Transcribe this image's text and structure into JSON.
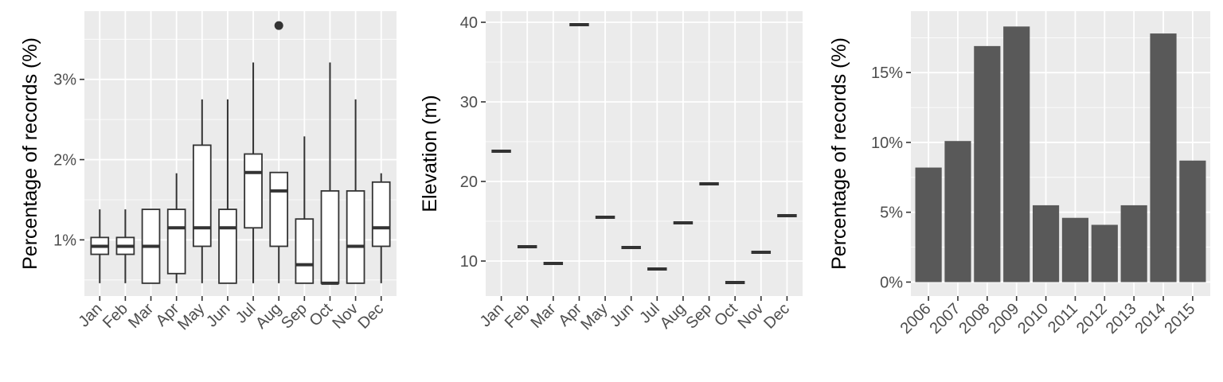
{
  "colors": {
    "panel_background": "#ebebeb",
    "grid_major": "#ffffff",
    "box_fill": "#ffffff",
    "box_stroke": "#333333",
    "bar_fill": "#595959",
    "tick_text": "#4d4d4d",
    "title_text": "#000000"
  },
  "chart_data": [
    {
      "type": "box",
      "title": "",
      "xlabel": "",
      "ylabel": "Percentage of records (%)",
      "ylim": [
        0.3,
        3.85
      ],
      "y_ticks": [
        1,
        2,
        3
      ],
      "y_tick_labels": [
        "1%",
        "2%",
        "3%"
      ],
      "grid": true,
      "categories": [
        "Jan",
        "Feb",
        "Mar",
        "Apr",
        "May",
        "Jun",
        "Jul",
        "Aug",
        "Sep",
        "Oct",
        "Nov",
        "Dec"
      ],
      "boxes": [
        {
          "min": 0.46,
          "q1": 0.82,
          "median": 0.92,
          "q3": 1.03,
          "max": 1.38
        },
        {
          "min": 0.46,
          "q1": 0.82,
          "median": 0.92,
          "q3": 1.03,
          "max": 1.38
        },
        {
          "min": 0.46,
          "q1": 0.46,
          "median": 0.92,
          "q3": 1.38,
          "max": 1.38
        },
        {
          "min": 0.46,
          "q1": 0.58,
          "median": 1.15,
          "q3": 1.38,
          "max": 1.83
        },
        {
          "min": 0.46,
          "q1": 0.92,
          "median": 1.15,
          "q3": 2.18,
          "max": 2.75
        },
        {
          "min": 0.46,
          "q1": 0.46,
          "median": 1.15,
          "q3": 1.38,
          "max": 2.75
        },
        {
          "min": 0.46,
          "q1": 1.15,
          "median": 1.84,
          "q3": 2.07,
          "max": 3.21
        },
        {
          "min": 0.46,
          "q1": 0.92,
          "median": 1.61,
          "q3": 1.84,
          "max": 1.84,
          "outliers": [
            3.67
          ]
        },
        {
          "min": 0.46,
          "q1": 0.46,
          "median": 0.69,
          "q3": 1.26,
          "max": 2.29
        },
        {
          "min": 0.46,
          "q1": 0.46,
          "median": 0.46,
          "q3": 1.61,
          "max": 3.21
        },
        {
          "min": 0.46,
          "q1": 0.46,
          "median": 0.92,
          "q3": 1.61,
          "max": 2.75
        },
        {
          "min": 0.46,
          "q1": 0.92,
          "median": 1.15,
          "q3": 1.72,
          "max": 1.83
        }
      ]
    },
    {
      "type": "box",
      "title": "",
      "xlabel": "",
      "ylabel": "Elevation (m)",
      "ylim": [
        5.6,
        41.4
      ],
      "y_ticks": [
        10,
        20,
        30,
        40
      ],
      "y_tick_labels": [
        "10",
        "20",
        "30",
        "40"
      ],
      "grid": true,
      "categories": [
        "Jan",
        "Feb",
        "Mar",
        "Apr",
        "May",
        "Jun",
        "Jul",
        "Aug",
        "Sep",
        "Oct",
        "Nov",
        "Dec"
      ],
      "values": [
        23.8,
        11.8,
        9.7,
        39.7,
        15.5,
        11.7,
        9.0,
        14.8,
        19.7,
        7.3,
        11.1,
        15.7
      ]
    },
    {
      "type": "bar",
      "title": "",
      "xlabel": "",
      "ylabel": "Percentage of records (%)",
      "ylim": [
        -1.0,
        19.4
      ],
      "y_ticks": [
        0,
        5,
        10,
        15
      ],
      "y_tick_labels": [
        "0%",
        "5%",
        "10%",
        "15%"
      ],
      "grid": true,
      "categories": [
        "2006",
        "2007",
        "2008",
        "2009",
        "2010",
        "2011",
        "2012",
        "2013",
        "2014",
        "2015"
      ],
      "values": [
        8.2,
        10.1,
        16.9,
        18.3,
        5.5,
        4.6,
        4.1,
        5.5,
        17.8,
        8.7
      ]
    }
  ]
}
